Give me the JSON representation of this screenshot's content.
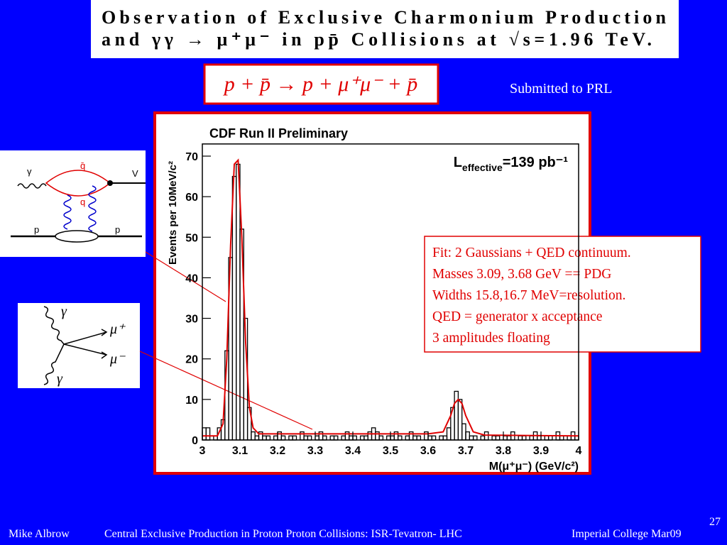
{
  "slide": {
    "title_lines": [
      "Observation of Exclusive Charmonium Production",
      "and γγ → μ⁺μ⁻ in pp̄ Collisions at √s=1.96 TeV."
    ],
    "equation": "p + p̄ → p + μ⁺μ⁻ + p̄",
    "note": "Submitted to PRL",
    "fit_notes": [
      "Fit: 2 Gaussians + QED continuum.",
      "Masses 3.09, 3.68 GeV == PDG",
      "Widths 15.8,16.7 MeV=resolution.",
      "QED = generator x acceptance",
      "3 amplitudes floating"
    ],
    "diagram_qq": {
      "labels": [
        "γ",
        "q̄",
        "q",
        "V",
        "p",
        "p"
      ]
    },
    "diagram_gg": {
      "labels": [
        "γ",
        "μ⁺",
        "μ⁻",
        "γ"
      ]
    },
    "footer": {
      "author": "Mike Albrow",
      "talk": "Central Exclusive Production in Proton Proton Collisions: ISR-Tevatron- LHC",
      "venue": "Imperial College Mar09",
      "page": "27"
    }
  },
  "chart_data": {
    "type": "histogram",
    "title": "CDF Run II Preliminary",
    "xlabel": "M(μ⁺μ⁻) (GeV/c²)",
    "ylabel": "Events per 10MeV/c²",
    "annotation": {
      "symbol": "L",
      "subscript": "effective",
      "text": "=139 pb⁻¹"
    },
    "bins": [
      3,
      3.01,
      3.02,
      3.03,
      3.04,
      3.05,
      3.06,
      3.07,
      3.08,
      3.09,
      3.1,
      3.11,
      3.12,
      3.13,
      3.14,
      3.15,
      3.16,
      3.17,
      3.18,
      3.19,
      3.2,
      3.21,
      3.22,
      3.23,
      3.24,
      3.25,
      3.26,
      3.27,
      3.28,
      3.29,
      3.3,
      3.31,
      3.32,
      3.33,
      3.34,
      3.35,
      3.36,
      3.37,
      3.38,
      3.39,
      3.4,
      3.41,
      3.42,
      3.43,
      3.44,
      3.45,
      3.46,
      3.47,
      3.48,
      3.49,
      3.5,
      3.51,
      3.52,
      3.53,
      3.54,
      3.55,
      3.56,
      3.57,
      3.58,
      3.59,
      3.6,
      3.61,
      3.62,
      3.63,
      3.64,
      3.65,
      3.66,
      3.67,
      3.68,
      3.69,
      3.7,
      3.71,
      3.72,
      3.73,
      3.74,
      3.75,
      3.76,
      3.77,
      3.78,
      3.79,
      3.8,
      3.81,
      3.82,
      3.83,
      3.84,
      3.85,
      3.86,
      3.87,
      3.88,
      3.89,
      3.9,
      3.91,
      3.92,
      3.93,
      3.94,
      3.95,
      3.96,
      3.97,
      3.98,
      3.99,
      4
    ],
    "values": [
      3,
      3,
      0,
      1,
      3,
      5,
      22,
      45,
      65,
      68,
      52,
      30,
      8,
      2,
      1,
      2,
      1,
      1,
      0,
      1,
      2,
      1,
      0,
      1,
      1,
      0,
      2,
      1,
      1,
      0,
      1,
      2,
      1,
      0,
      1,
      1,
      0,
      1,
      2,
      1,
      1,
      0,
      1,
      1,
      2,
      3,
      2,
      1,
      0,
      1,
      1,
      2,
      1,
      0,
      1,
      2,
      1,
      1,
      0,
      2,
      1,
      1,
      0,
      1,
      1,
      3,
      8,
      12,
      10,
      4,
      2,
      1,
      1,
      0,
      1,
      2,
      0,
      1,
      1,
      0,
      1,
      1,
      2,
      0,
      1,
      1,
      0,
      1,
      2,
      1,
      0,
      1,
      1,
      0,
      2,
      1,
      0,
      1,
      2,
      1
    ],
    "color": "#000000",
    "fit": {
      "color": "#e00000",
      "x": [
        3,
        3.04,
        3.055,
        3.065,
        3.075,
        3.085,
        3.095,
        3.105,
        3.115,
        3.125,
        3.135,
        3.15,
        3.3,
        3.6,
        3.64,
        3.66,
        3.67,
        3.68,
        3.69,
        3.7,
        3.72,
        3.75,
        4
      ],
      "values": [
        1,
        1,
        4,
        20,
        48,
        68,
        69,
        50,
        24,
        8,
        3,
        1.5,
        1.5,
        1.5,
        2,
        6,
        9,
        10,
        9,
        6,
        2,
        1.2,
        1
      ]
    },
    "xlim": [
      3,
      4
    ],
    "xticks": [
      3,
      3.1,
      3.2,
      3.3,
      3.4,
      3.5,
      3.6,
      3.7,
      3.8,
      3.9,
      4
    ],
    "ylim": [
      0,
      73
    ],
    "yticks": [
      0,
      10,
      20,
      30,
      40,
      50,
      60,
      70
    ]
  }
}
